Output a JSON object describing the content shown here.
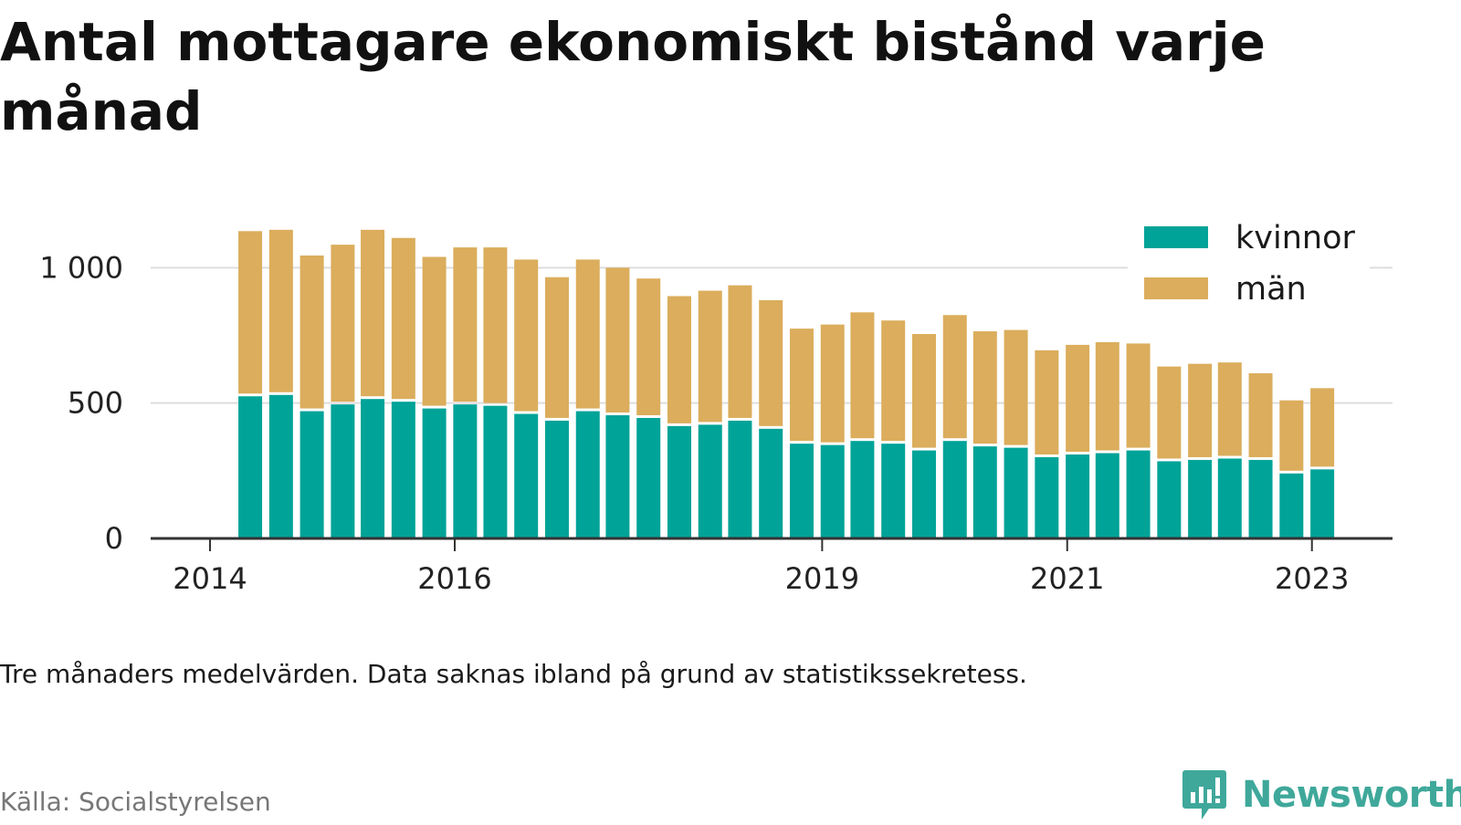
{
  "title": "Antal mottagare ekonomiskt bistånd varje månad",
  "note": "Tre månaders medelvärden. Data saknas ibland på grund av statistikssekretess.",
  "source": "Källa: Socialstyrelsen",
  "brand": {
    "name": "Newsworthy",
    "icon": "newsworthy-logo-icon",
    "color": "#3fa89a"
  },
  "chart_data": {
    "type": "bar",
    "stacked": true,
    "title": "Antal mottagare ekonomiskt bistånd varje månad",
    "xlabel": "",
    "ylabel": "",
    "ylim": [
      0,
      1200
    ],
    "xlim": [
      "2014-01-01",
      "2023-07-01"
    ],
    "y_ticks": [
      0,
      500,
      1000
    ],
    "y_tick_labels": [
      "0",
      "500",
      "1 000"
    ],
    "x_ticks": [
      "2014-01-01",
      "2016-01-01",
      "2019-01-01",
      "2021-01-01",
      "2023-01-01"
    ],
    "x_tick_labels": [
      "2014",
      "2016",
      "2019",
      "2021",
      "2023"
    ],
    "grid": "horizontal",
    "legend_position": "top-right",
    "x": [
      "2014-05",
      "2014-08",
      "2014-11",
      "2015-02",
      "2015-05",
      "2015-08",
      "2015-11",
      "2016-02",
      "2016-05",
      "2016-08",
      "2016-11",
      "2017-02",
      "2017-05",
      "2017-08",
      "2017-11",
      "2018-02",
      "2018-05",
      "2018-08",
      "2018-11",
      "2019-02",
      "2019-05",
      "2019-08",
      "2019-11",
      "2020-02",
      "2020-05",
      "2020-08",
      "2020-11",
      "2021-02",
      "2021-05",
      "2021-08",
      "2021-11",
      "2022-02",
      "2022-05",
      "2022-08",
      "2022-11",
      "2023-02"
    ],
    "series": [
      {
        "name": "kvinnor",
        "color": "#00a398",
        "values": [
          525,
          530,
          470,
          495,
          515,
          505,
          480,
          495,
          490,
          460,
          435,
          470,
          455,
          445,
          415,
          420,
          435,
          405,
          350,
          345,
          360,
          350,
          325,
          360,
          340,
          335,
          300,
          310,
          315,
          325,
          285,
          290,
          295,
          290,
          240,
          255
        ]
      },
      {
        "name": "män",
        "color": "#dbad5c",
        "values": [
          610,
          610,
          575,
          590,
          625,
          605,
          560,
          580,
          585,
          570,
          530,
          560,
          545,
          515,
          480,
          495,
          500,
          475,
          425,
          445,
          475,
          455,
          430,
          465,
          425,
          435,
          395,
          405,
          410,
          395,
          350,
          355,
          355,
          320,
          270,
          300
        ]
      }
    ]
  }
}
